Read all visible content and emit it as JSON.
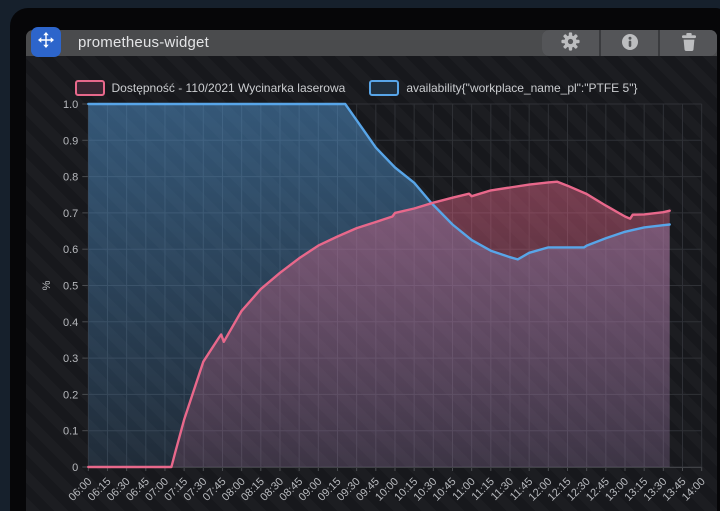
{
  "widget": {
    "title": "prometheus-widget",
    "toolbar": {
      "buttons": [
        {
          "name": "settings",
          "icon": "gear-icon"
        },
        {
          "name": "info",
          "icon": "info-icon"
        },
        {
          "name": "delete",
          "icon": "trash-icon"
        }
      ]
    },
    "drag_handle_icon": "move-icon"
  },
  "colors": {
    "drag_handle_blue": "#2d65cb",
    "series_pink": "#e8688b",
    "series_blue": "#58a5e8",
    "header_gray": "#4a4b4d"
  },
  "chart_data": {
    "type": "area",
    "title": "",
    "xlabel": "",
    "ylabel": "%",
    "ylim": [
      0,
      1
    ],
    "grid": true,
    "legend_position": "top-center",
    "y_ticks": [
      "1.0",
      "0.9",
      "0.8",
      "0.7",
      "0.6",
      "0.5",
      "0.4",
      "0.3",
      "0.2",
      "0.1",
      "0"
    ],
    "x_tick_labels": [
      "06:00",
      "06:15",
      "06:30",
      "06:45",
      "07:00",
      "07:15",
      "07:30",
      "07:45",
      "08:00",
      "08:15",
      "08:30",
      "08:45",
      "09:00",
      "09:15",
      "09:30",
      "09:45",
      "10:00",
      "10:15",
      "10:30",
      "10:45",
      "11:00",
      "11:15",
      "11:30",
      "11:45",
      "12:00",
      "12:15",
      "12:30",
      "12:45",
      "13:00",
      "13:15",
      "13:30",
      "13:45",
      "14:00"
    ],
    "x_axis_start": "06:00",
    "x_axis_end": "14:00",
    "data_end_time": "13:35",
    "series": [
      {
        "name": "Dostępność - 110/2021 Wycinarka laserowa",
        "color": "#e8688b",
        "swatch_fill": "#3a2531",
        "points": [
          [
            "06:00",
            0
          ],
          [
            "06:30",
            0
          ],
          [
            "07:00",
            0
          ],
          [
            "07:05",
            0
          ],
          [
            "07:08",
            0.04
          ],
          [
            "07:15",
            0.13
          ],
          [
            "07:30",
            0.29
          ],
          [
            "07:42",
            0.355
          ],
          [
            "07:44",
            0.365
          ],
          [
            "07:46",
            0.345
          ],
          [
            "08:00",
            0.43
          ],
          [
            "08:15",
            0.49
          ],
          [
            "08:30",
            0.535
          ],
          [
            "08:45",
            0.575
          ],
          [
            "09:00",
            0.61
          ],
          [
            "09:15",
            0.635
          ],
          [
            "09:30",
            0.658
          ],
          [
            "09:45",
            0.675
          ],
          [
            "09:58",
            0.69
          ],
          [
            "10:00",
            0.7
          ],
          [
            "10:15",
            0.712
          ],
          [
            "10:30",
            0.728
          ],
          [
            "10:45",
            0.742
          ],
          [
            "10:58",
            0.753
          ],
          [
            "11:00",
            0.746
          ],
          [
            "11:15",
            0.762
          ],
          [
            "11:30",
            0.77
          ],
          [
            "11:45",
            0.778
          ],
          [
            "12:00",
            0.784
          ],
          [
            "12:07",
            0.786
          ],
          [
            "12:15",
            0.775
          ],
          [
            "12:30",
            0.752
          ],
          [
            "12:45",
            0.72
          ],
          [
            "13:00",
            0.69
          ],
          [
            "13:04",
            0.684
          ],
          [
            "13:06",
            0.695
          ],
          [
            "13:15",
            0.696
          ],
          [
            "13:30",
            0.702
          ],
          [
            "13:35",
            0.706
          ]
        ]
      },
      {
        "name": "availability{\"workplace_name_pl\":\"PTFE 5\"}",
        "color": "#58a5e8",
        "swatch_fill": "#20303f",
        "points": [
          [
            "06:00",
            1.0
          ],
          [
            "07:00",
            1.0
          ],
          [
            "08:00",
            1.0
          ],
          [
            "09:00",
            1.0
          ],
          [
            "09:21",
            1.0
          ],
          [
            "09:30",
            0.955
          ],
          [
            "09:45",
            0.88
          ],
          [
            "10:00",
            0.825
          ],
          [
            "10:15",
            0.783
          ],
          [
            "10:28",
            0.729
          ],
          [
            "10:45",
            0.668
          ],
          [
            "11:00",
            0.625
          ],
          [
            "11:15",
            0.596
          ],
          [
            "11:30",
            0.578
          ],
          [
            "11:36",
            0.572
          ],
          [
            "11:45",
            0.59
          ],
          [
            "12:00",
            0.605
          ],
          [
            "12:28",
            0.605
          ],
          [
            "12:30",
            0.61
          ],
          [
            "12:45",
            0.63
          ],
          [
            "13:00",
            0.648
          ],
          [
            "13:15",
            0.66
          ],
          [
            "13:30",
            0.666
          ],
          [
            "13:35",
            0.668
          ]
        ]
      }
    ]
  }
}
